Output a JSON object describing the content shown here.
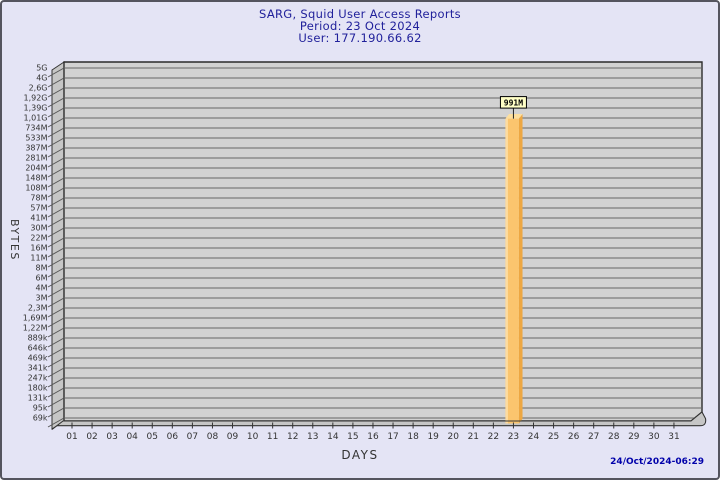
{
  "header": {
    "title": "SARG, Squid User Access Reports",
    "period": "Period: 23 Oct 2024",
    "user": "User: 177.190.66.62"
  },
  "footer": {
    "generated_at": "24/Oct/2024-06:29"
  },
  "chart_data": {
    "type": "bar",
    "title": "SARG, Squid User Access Reports",
    "period": "23 Oct 2024",
    "user": "177.190.66.62",
    "xlabel": "DAYS",
    "ylabel": "BYTES",
    "y_scale": "log",
    "grid": "horizontal",
    "legend_position": "none",
    "y_tick_labels": [
      "5G",
      "4G",
      "2,6G",
      "1,92G",
      "1,39G",
      "1,01G",
      "734M",
      "533M",
      "387M",
      "281M",
      "204M",
      "148M",
      "108M",
      "78M",
      "57M",
      "41M",
      "30M",
      "22M",
      "16M",
      "11M",
      "8M",
      "6M",
      "4M",
      "3M",
      "2,3M",
      "1,69M",
      "1,22M",
      "889k",
      "646k",
      "469k",
      "341k",
      "247k",
      "180k",
      "131k",
      "95k",
      "69k"
    ],
    "categories": [
      "01",
      "02",
      "03",
      "04",
      "05",
      "06",
      "07",
      "08",
      "09",
      "10",
      "11",
      "12",
      "13",
      "14",
      "15",
      "16",
      "17",
      "18",
      "19",
      "20",
      "21",
      "22",
      "23",
      "24",
      "25",
      "26",
      "27",
      "28",
      "29",
      "30",
      "31"
    ],
    "bars": [
      {
        "category": "23",
        "value": "991M",
        "label": "991M"
      }
    ]
  },
  "colors": {
    "page_bg": "#E4E4F5",
    "page_border": "#54545E",
    "plot_bg": "#D2D2D2",
    "wall_bg": "#C6C6C6",
    "grid_line": "#666666",
    "plot_border": "#2B2B2B",
    "bar_face": "#FBC56E",
    "bar_side": "#EDA742",
    "bar_top": "#FDDF9E",
    "bar_highlight": "#FDDCA0",
    "annotation_bg": "#FFFFC6",
    "annotation_border": "#000000",
    "title_text": "#21219B",
    "axis_text": "#333333",
    "timestamp_text": "#0000AA"
  }
}
